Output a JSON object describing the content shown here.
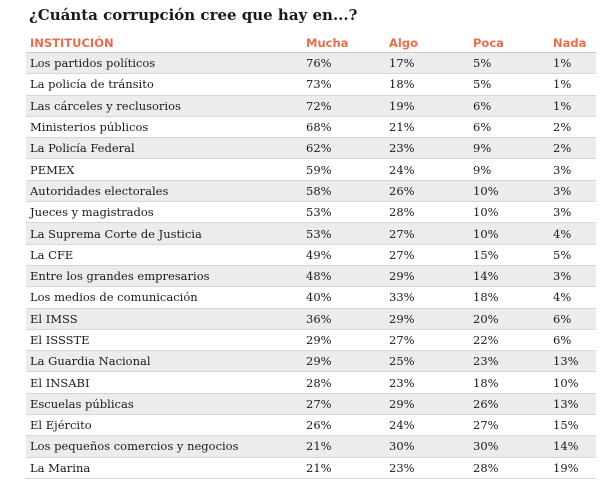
{
  "title": "¿Cuánta corrupción cree que hay en...?",
  "colors": {
    "header": "#e86d4d",
    "stripe": "#ececec"
  },
  "chart_data": {
    "type": "table",
    "title": "¿Cuánta corrupción cree que hay en...?",
    "columns": [
      "INSTITUCIÓN",
      "Mucha",
      "Algo",
      "Poca",
      "Nada"
    ],
    "rows": [
      [
        "Los partidos políticos",
        "76%",
        "17%",
        "5%",
        "1%"
      ],
      [
        "La policía de tránsito",
        "73%",
        "18%",
        "5%",
        "1%"
      ],
      [
        "Las cárceles y reclusorios",
        "72%",
        "19%",
        "6%",
        "1%"
      ],
      [
        "Ministerios públicos",
        "68%",
        "21%",
        "6%",
        "2%"
      ],
      [
        "La Policía Federal",
        "62%",
        "23%",
        "9%",
        "2%"
      ],
      [
        "PEMEX",
        "59%",
        "24%",
        "9%",
        "3%"
      ],
      [
        "Autoridades electorales",
        "58%",
        "26%",
        "10%",
        "3%"
      ],
      [
        "Jueces y magistrados",
        "53%",
        "28%",
        "10%",
        "3%"
      ],
      [
        "La Suprema Corte de Justicia",
        "53%",
        "27%",
        "10%",
        "4%"
      ],
      [
        "La CFE",
        "49%",
        "27%",
        "15%",
        "5%"
      ],
      [
        "Entre los grandes empresarios",
        "48%",
        "29%",
        "14%",
        "3%"
      ],
      [
        "Los medios de comunicación",
        "40%",
        "33%",
        "18%",
        "4%"
      ],
      [
        "El IMSS",
        "36%",
        "29%",
        "20%",
        "6%"
      ],
      [
        "El ISSSTE",
        "29%",
        "27%",
        "22%",
        "6%"
      ],
      [
        "La Guardia Nacional",
        "29%",
        "25%",
        "23%",
        "13%"
      ],
      [
        "El INSABI",
        "28%",
        "23%",
        "18%",
        "10%"
      ],
      [
        "Escuelas públicas",
        "27%",
        "29%",
        "26%",
        "13%"
      ],
      [
        "El Ejército",
        "26%",
        "24%",
        "27%",
        "15%"
      ],
      [
        "Los pequeños comercios y negocios",
        "21%",
        "30%",
        "30%",
        "14%"
      ],
      [
        "La Marina",
        "21%",
        "23%",
        "28%",
        "19%"
      ]
    ]
  }
}
